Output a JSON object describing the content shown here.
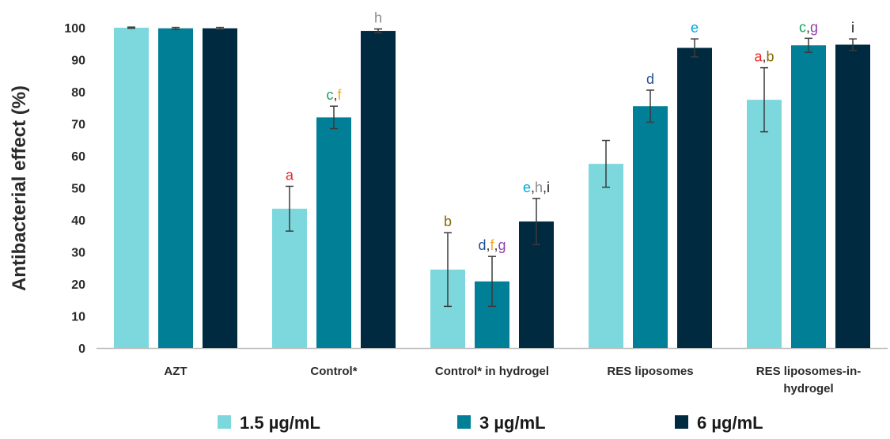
{
  "chart_data": {
    "type": "bar",
    "ylabel": "Antibacterial effect (%)",
    "xlabel": "",
    "ylim": [
      0,
      100
    ],
    "yticks": [
      0,
      10,
      20,
      30,
      40,
      50,
      60,
      70,
      80,
      90,
      100
    ],
    "categories": [
      [
        "AZT"
      ],
      [
        "Control*"
      ],
      [
        "Control* in hydrogel"
      ],
      [
        "RES liposomes"
      ],
      [
        "RES liposomes-in-",
        "hydrogel"
      ]
    ],
    "legend_position": "bottom",
    "series": [
      {
        "name": "1.5 µg/mL",
        "color": "#7dd8de",
        "values": [
          100,
          43.5,
          24.5,
          57.5,
          77.5
        ],
        "errors": [
          0.2,
          7,
          11.5,
          7.3,
          10
        ]
      },
      {
        "name": "3 µg/mL",
        "color": "#017f96",
        "values": [
          99.8,
          72,
          20.8,
          75.5,
          94.5
        ],
        "errors": [
          0.3,
          3.5,
          7.8,
          5,
          2.2
        ]
      },
      {
        "name": "6 µg/mL",
        "color": "#002a40",
        "values": [
          99.8,
          99,
          39.5,
          93.7,
          94.7
        ],
        "errors": [
          0.3,
          0.6,
          7.2,
          2.8,
          1.8
        ]
      }
    ],
    "annotations": [
      {
        "category": 1,
        "series": 0,
        "letters": [
          {
            "t": "a",
            "c": "#e8262c"
          }
        ]
      },
      {
        "category": 1,
        "series": 1,
        "letters": [
          {
            "t": "c",
            "c": "#16a05a"
          },
          {
            "t": ",",
            "c": "#333333"
          },
          {
            "t": "f",
            "c": "#f2a81d"
          }
        ]
      },
      {
        "category": 1,
        "series": 2,
        "letters": [
          {
            "t": "h",
            "c": "#8c8c8c"
          }
        ]
      },
      {
        "category": 2,
        "series": 0,
        "letters": [
          {
            "t": "b",
            "c": "#8a6a00"
          }
        ]
      },
      {
        "category": 2,
        "series": 1,
        "letters": [
          {
            "t": "d",
            "c": "#1f4e9a"
          },
          {
            "t": ",",
            "c": "#333333"
          },
          {
            "t": "f",
            "c": "#f2a81d"
          },
          {
            "t": ",",
            "c": "#333333"
          },
          {
            "t": "g",
            "c": "#8e3fb0"
          }
        ]
      },
      {
        "category": 2,
        "series": 2,
        "letters": [
          {
            "t": "e",
            "c": "#00a6d6"
          },
          {
            "t": ",",
            "c": "#333333"
          },
          {
            "t": "h",
            "c": "#8c8c8c"
          },
          {
            "t": ",",
            "c": "#333333"
          },
          {
            "t": "i",
            "c": "#1a1a1a"
          }
        ]
      },
      {
        "category": 3,
        "series": 1,
        "letters": [
          {
            "t": "d",
            "c": "#1f4e9a"
          }
        ]
      },
      {
        "category": 3,
        "series": 2,
        "letters": [
          {
            "t": "e",
            "c": "#00a6d6"
          }
        ]
      },
      {
        "category": 4,
        "series": 0,
        "letters": [
          {
            "t": "a",
            "c": "#e8262c"
          },
          {
            "t": ",",
            "c": "#333333"
          },
          {
            "t": "b",
            "c": "#8a6a00"
          }
        ]
      },
      {
        "category": 4,
        "series": 1,
        "letters": [
          {
            "t": "c",
            "c": "#16a05a"
          },
          {
            "t": ",",
            "c": "#333333"
          },
          {
            "t": "g",
            "c": "#8e3fb0"
          }
        ]
      },
      {
        "category": 4,
        "series": 2,
        "letters": [
          {
            "t": "i",
            "c": "#1a1a1a"
          }
        ]
      }
    ]
  }
}
